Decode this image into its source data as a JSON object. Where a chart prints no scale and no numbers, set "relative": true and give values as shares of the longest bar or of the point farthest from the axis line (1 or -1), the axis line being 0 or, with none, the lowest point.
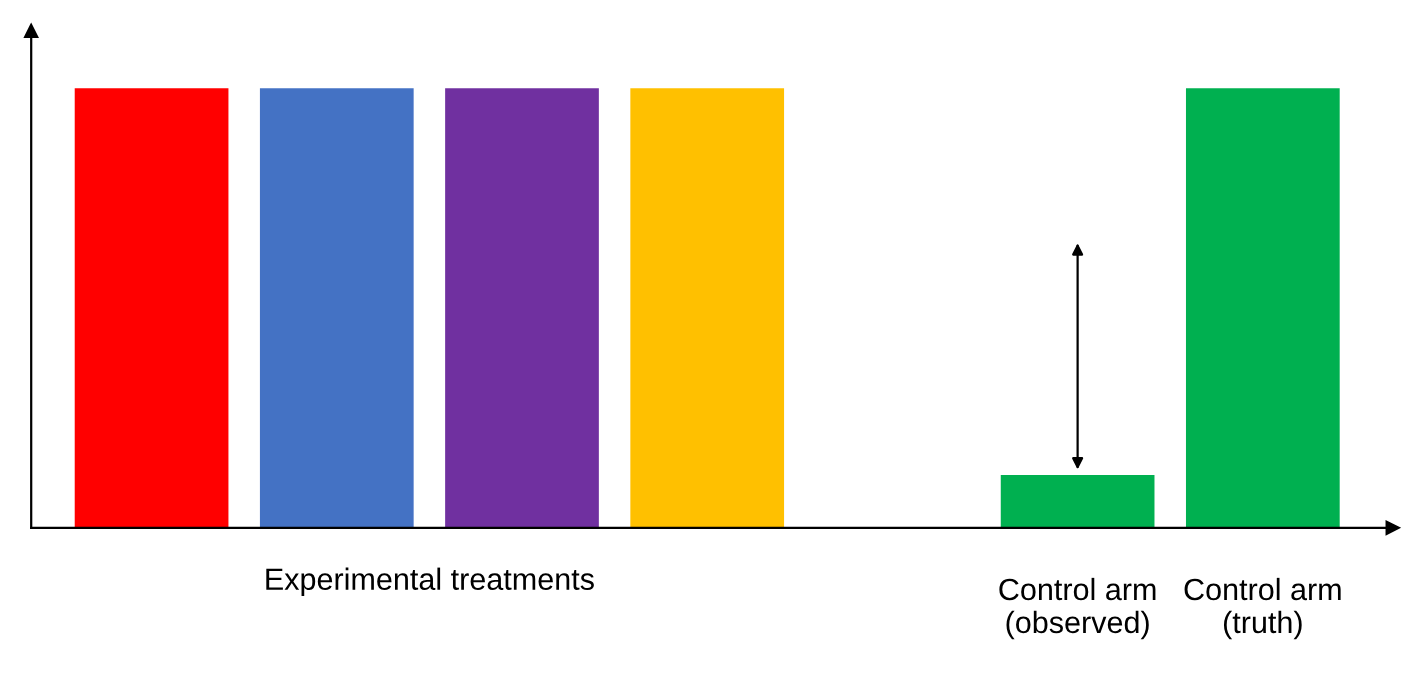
{
  "chart_data": {
    "type": "bar",
    "relative": true,
    "categories": [
      null,
      null,
      null,
      null,
      null,
      "Control arm\n(observed)",
      "Control arm\n(truth)"
    ],
    "values": [
      1,
      1,
      1,
      1,
      null,
      0.12,
      1
    ],
    "colors": [
      "#ff0000",
      "#4472c4",
      "#7030a0",
      "#ffc000",
      "#ffffff",
      "#00b050",
      "#00b050"
    ],
    "annotations": [
      "Experimental treatments"
    ],
    "grid": false,
    "legend": false
  }
}
